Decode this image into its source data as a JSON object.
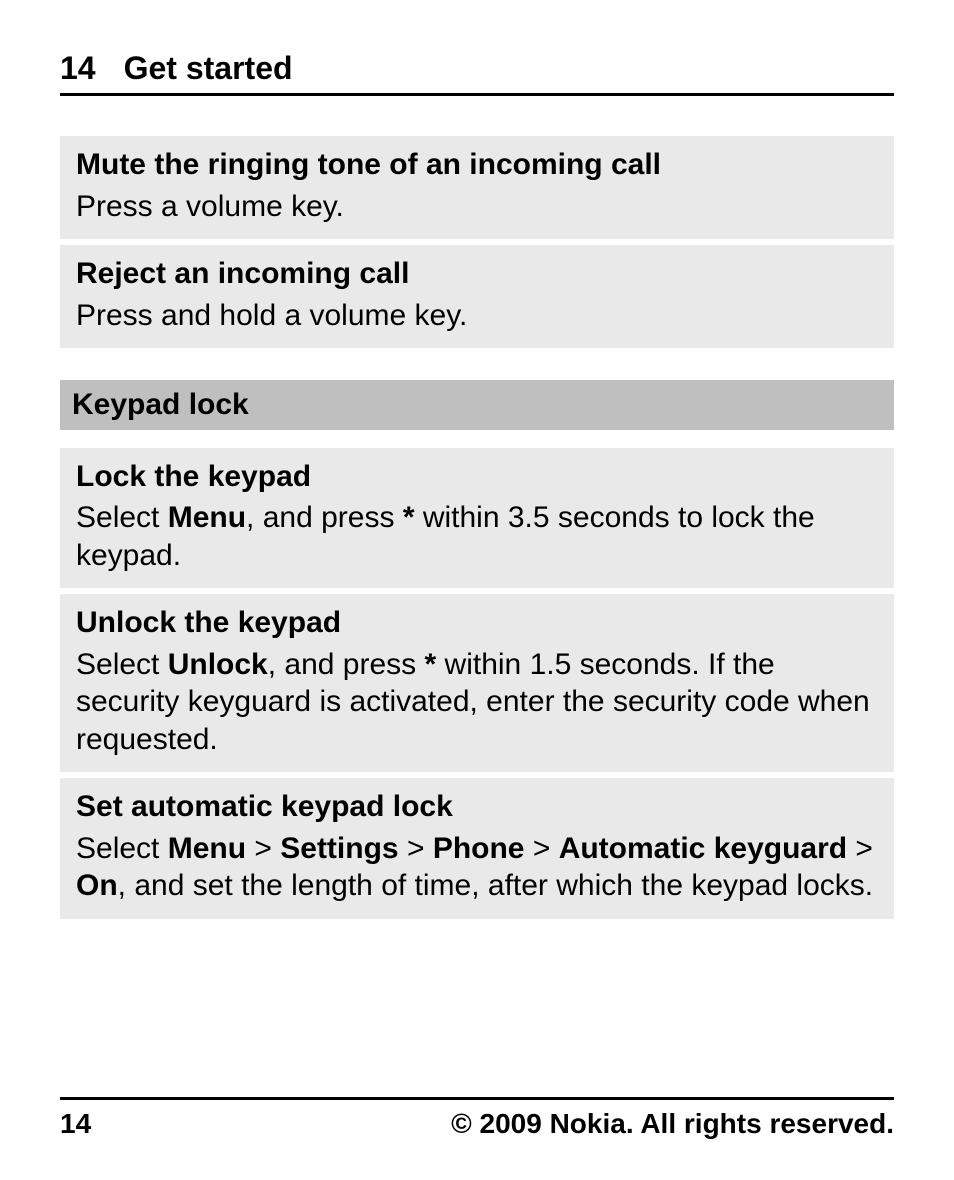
{
  "header": {
    "page_number": "14",
    "section_title": "Get started"
  },
  "blocks": {
    "mute": {
      "title": "Mute the ringing tone of an incoming call",
      "body": "Press a volume key."
    },
    "reject": {
      "title": "Reject an incoming call",
      "body": "Press and hold a volume key."
    }
  },
  "section_heading": "Keypad lock",
  "keypad": {
    "lock": {
      "title": "Lock the keypad",
      "pre1": "Select ",
      "b1": "Menu",
      "post1": ", and press ",
      "b2": "*",
      "post2": " within 3.5 seconds to lock the keypad."
    },
    "unlock": {
      "title": "Unlock the keypad",
      "pre1": "Select ",
      "b1": "Unlock",
      "post1": ", and press ",
      "b2": "*",
      "post2": " within 1.5 seconds. If the security keyguard is activated, enter the security code when requested."
    },
    "auto": {
      "title": "Set automatic keypad lock",
      "pre1": "Select ",
      "b1": "Menu",
      "sep1": " > ",
      "b2": "Settings",
      "sep2": " > ",
      "b3": "Phone",
      "sep3": " > ",
      "b4": "Automatic keyguard",
      "sep4": " > ",
      "b5": "On",
      "post": ", and set the length of time, after which the keypad locks."
    }
  },
  "footer": {
    "page_number": "14",
    "copyright": "© 2009 Nokia. All rights reserved."
  },
  "style": {
    "page_bg": "#ffffff",
    "block_bg": "#e9e9e9",
    "heading_bg": "#bfbfbf",
    "text_color": "#000000",
    "rule_color": "#000000",
    "title_fontsize_pt": 24,
    "body_fontsize_pt": 22,
    "footer_fontsize_pt": 21,
    "font_family": "sans-serif-condensed"
  }
}
